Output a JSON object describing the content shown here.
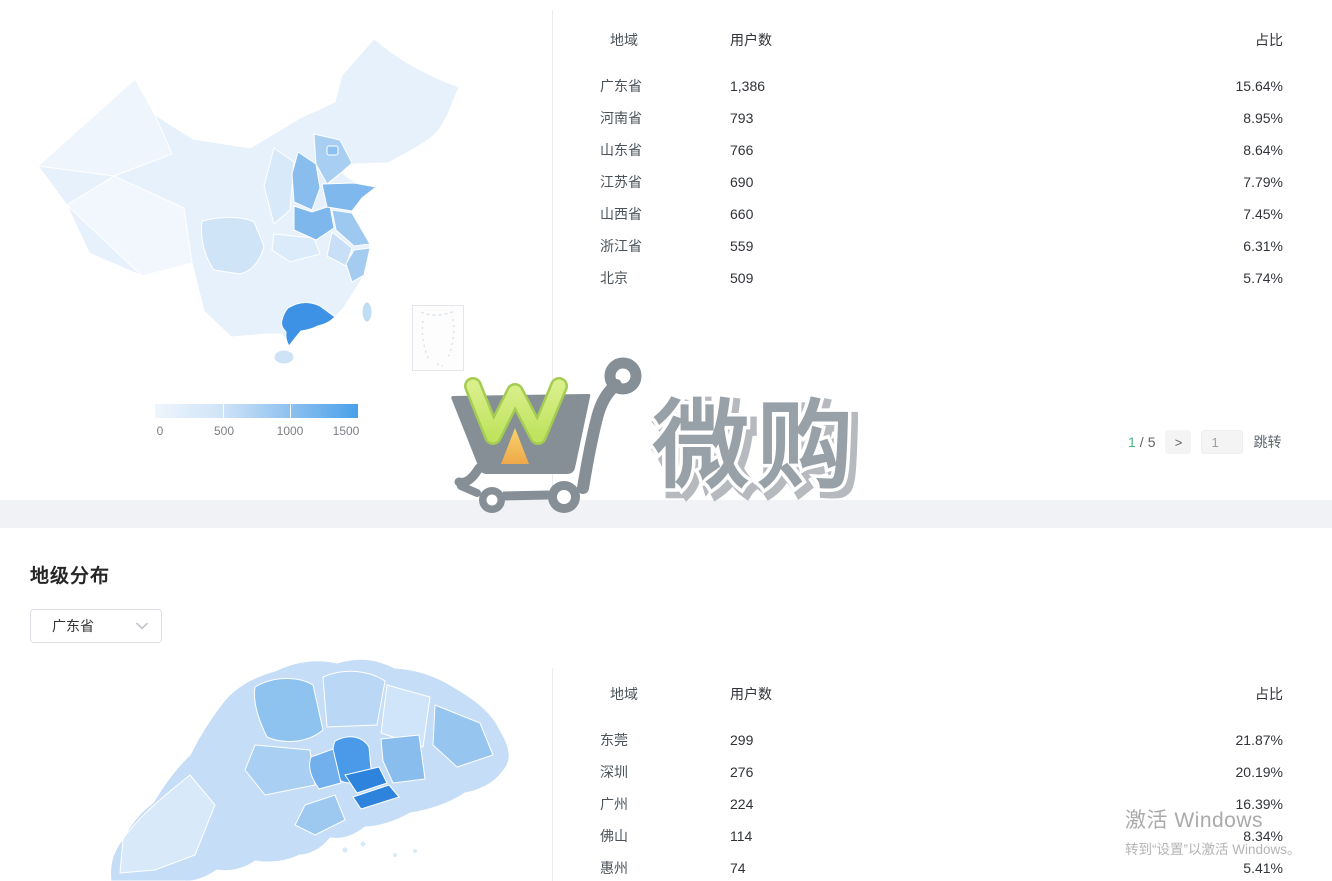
{
  "province_section": {
    "table": {
      "headers": {
        "region": "地域",
        "users": "用户数",
        "share": "占比"
      },
      "rows": [
        {
          "region": "广东省",
          "users": "1,386",
          "share": "15.64%"
        },
        {
          "region": "河南省",
          "users": "793",
          "share": "8.95%"
        },
        {
          "region": "山东省",
          "users": "766",
          "share": "8.64%"
        },
        {
          "region": "江苏省",
          "users": "690",
          "share": "7.79%"
        },
        {
          "region": "山西省",
          "users": "660",
          "share": "7.45%"
        },
        {
          "region": "浙江省",
          "users": "559",
          "share": "6.31%"
        },
        {
          "region": "北京",
          "users": "509",
          "share": "5.74%"
        }
      ]
    },
    "legend": {
      "ticks": [
        {
          "label": "0"
        },
        {
          "label": "500"
        },
        {
          "label": "1000"
        },
        {
          "label": "1500"
        }
      ]
    },
    "pagination": {
      "current": "1",
      "divider": "/",
      "total": "5",
      "next_icon": ">",
      "input_value": "1",
      "jump_label": "跳转"
    }
  },
  "city_section": {
    "title": "地级分布",
    "province_select": {
      "value": "广东省"
    },
    "table": {
      "headers": {
        "region": "地域",
        "users": "用户数",
        "share": "占比"
      },
      "rows": [
        {
          "region": "东莞",
          "users": "299",
          "share": "21.87%"
        },
        {
          "region": "深圳",
          "users": "276",
          "share": "20.19%"
        },
        {
          "region": "广州",
          "users": "224",
          "share": "16.39%"
        },
        {
          "region": "佛山",
          "users": "114",
          "share": "8.34%"
        },
        {
          "region": "惠州",
          "users": "74",
          "share": "5.41%"
        }
      ]
    }
  },
  "logo": {
    "text": "微购"
  },
  "watermark": {
    "line1": "激活 Windows",
    "line2": "转到“设置”以激活 Windows。"
  },
  "chart_data": [
    {
      "type": "heatmap",
      "title": "province choropleth map of China",
      "legend_range": [
        0,
        1500
      ],
      "legend_ticks": [
        0,
        500,
        1000,
        1500
      ],
      "series": [
        {
          "name": "广东省",
          "value": 1386
        },
        {
          "name": "河南省",
          "value": 793
        },
        {
          "name": "山东省",
          "value": 766
        },
        {
          "name": "江苏省",
          "value": 690
        },
        {
          "name": "山西省",
          "value": 660
        },
        {
          "name": "浙江省",
          "value": 559
        },
        {
          "name": "北京",
          "value": 509
        }
      ]
    },
    {
      "type": "heatmap",
      "title": "city choropleth map of Guangdong (地级分布)",
      "series": [
        {
          "name": "东莞",
          "value": 299
        },
        {
          "name": "深圳",
          "value": 276
        },
        {
          "name": "广州",
          "value": 224
        },
        {
          "name": "佛山",
          "value": 114
        },
        {
          "name": "惠州",
          "value": 74
        }
      ]
    }
  ],
  "colors": {
    "accent_green": "#4cb387",
    "map_min": "#eef5fc",
    "map_max": "#3e92e6",
    "band_gray": "#f0f2f5",
    "logo_gray": "#868e96",
    "logo_green": "#cdea75",
    "logo_orange": "#f3b052"
  }
}
